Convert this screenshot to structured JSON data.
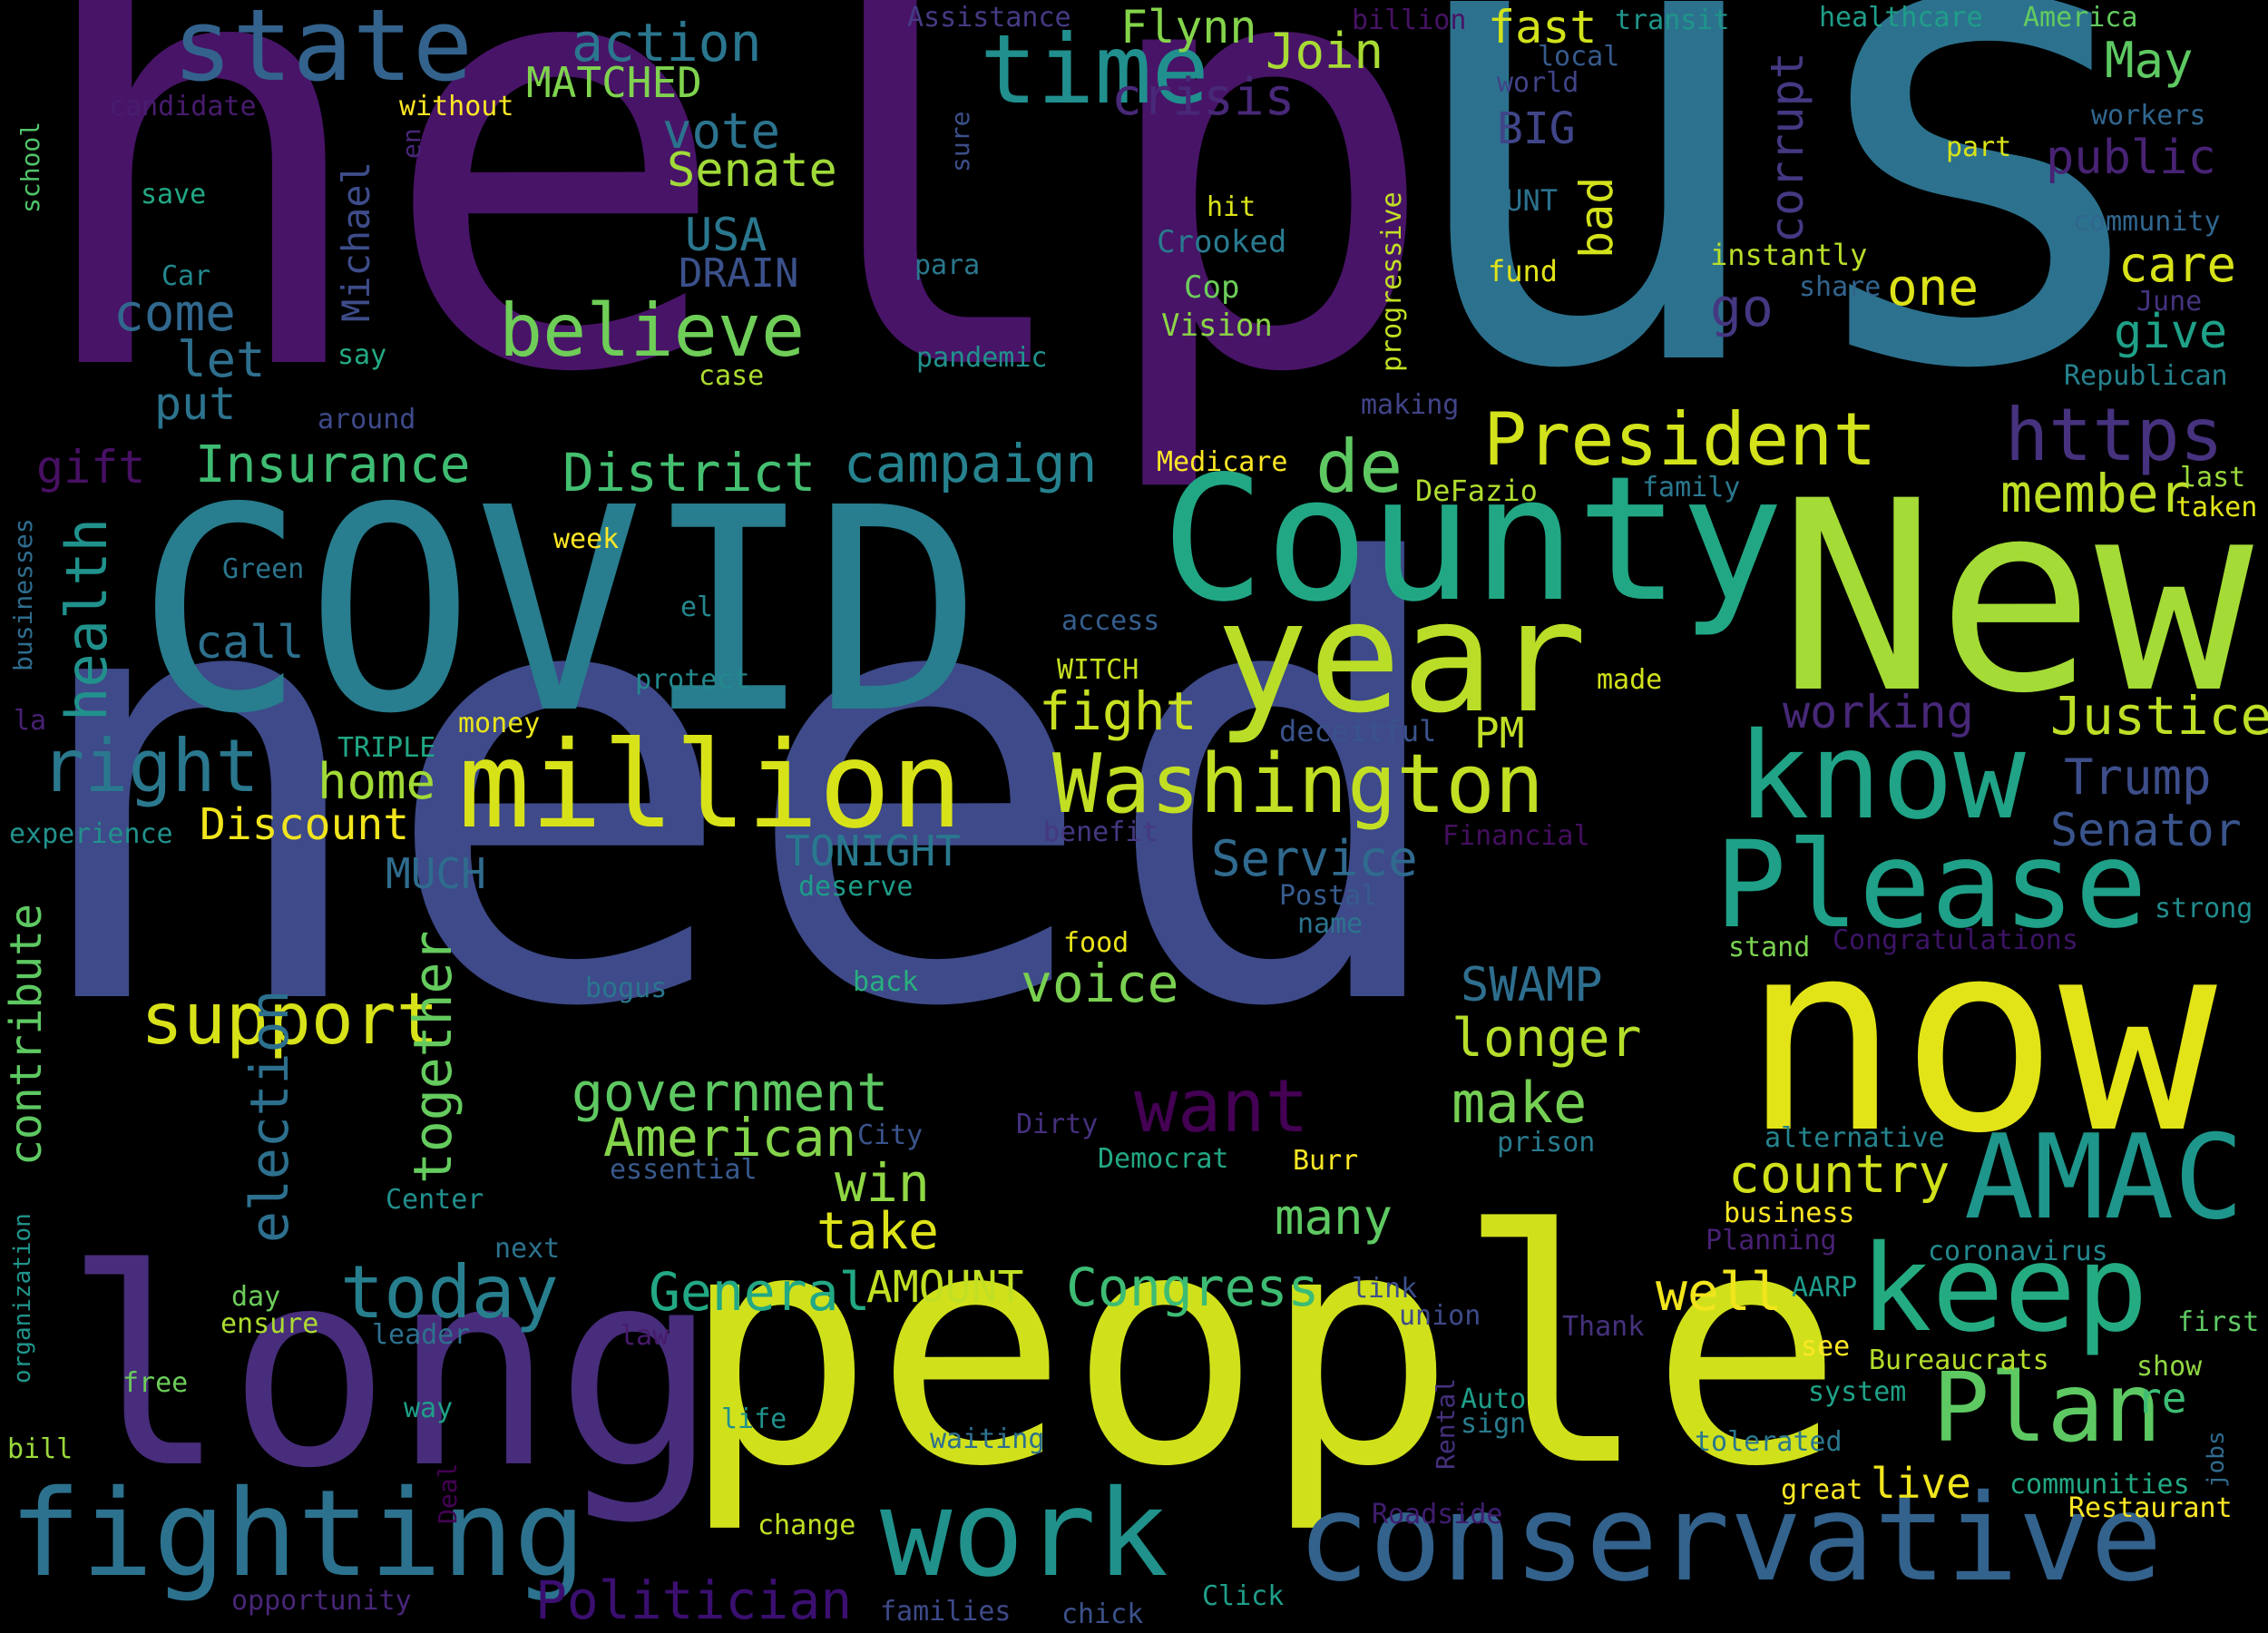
{
  "words": [
    {
      "text": "need",
      "color": "#3e4a89"
    },
    {
      "text": "help",
      "color": "#481467"
    },
    {
      "text": "us",
      "color": "#2c728e"
    },
    {
      "text": "people",
      "color": "#d0e11c"
    },
    {
      "text": "COVID",
      "color": "#287d8e"
    },
    {
      "text": "New",
      "color": "#a5db36"
    },
    {
      "text": "long",
      "color": "#472d7b"
    },
    {
      "text": "now",
      "color": "#e2e418"
    },
    {
      "text": "County",
      "color": "#22a785"
    },
    {
      "text": "conservative",
      "color": "#33628d"
    },
    {
      "text": "year",
      "color": "#bade28"
    },
    {
      "text": "million",
      "color": "#d8e219"
    },
    {
      "text": "know",
      "color": "#20a386"
    },
    {
      "text": "keep",
      "color": "#25ab82"
    },
    {
      "text": "work",
      "color": "#21918c"
    },
    {
      "text": "fighting",
      "color": "#2c728e"
    },
    {
      "text": "Please",
      "color": "#1fa088"
    },
    {
      "text": "AMAC",
      "color": "#1f968b"
    },
    {
      "text": "Plan",
      "color": "#5ec962"
    },
    {
      "text": "Washington",
      "color": "#c2df23"
    },
    {
      "text": "time",
      "color": "#218f8d"
    },
    {
      "text": "state",
      "color": "#33638d"
    },
    {
      "text": "President",
      "color": "#d2e21b"
    },
    {
      "text": "want",
      "color": "#440154"
    },
    {
      "text": "https",
      "color": "#46327e"
    },
    {
      "text": "believe",
      "color": "#6ece58"
    },
    {
      "text": "right",
      "color": "#2a788e"
    },
    {
      "text": "today",
      "color": "#277f8e"
    },
    {
      "text": "support",
      "color": "#d8e219"
    },
    {
      "text": "de",
      "color": "#5ec962"
    },
    {
      "text": "action",
      "color": "#2a768e"
    },
    {
      "text": "Justice",
      "color": "#bddf26"
    },
    {
      "text": "member",
      "color": "#bddf26"
    },
    {
      "text": "government",
      "color": "#5ec962"
    },
    {
      "text": "American",
      "color": "#84d44b"
    },
    {
      "text": "General",
      "color": "#22a884"
    },
    {
      "text": "Congress",
      "color": "#3dbc74"
    },
    {
      "text": "Politician",
      "color": "#3b0f70"
    },
    {
      "text": "country",
      "color": "#d0e11c"
    },
    {
      "text": "fight",
      "color": "#c8e020"
    },
    {
      "text": "campaign",
      "color": "#26828e"
    },
    {
      "text": "District",
      "color": "#44bf70"
    },
    {
      "text": "Insurance",
      "color": "#3fbc73"
    },
    {
      "text": "health",
      "color": "#21918c"
    },
    {
      "text": "election",
      "color": "#2d708e"
    },
    {
      "text": "together",
      "color": "#65cb5e"
    },
    {
      "text": "contribute",
      "color": "#5ec962"
    },
    {
      "text": "voice",
      "color": "#7ad151"
    },
    {
      "text": "make",
      "color": "#75d054"
    },
    {
      "text": "longer",
      "color": "#b5de2b"
    },
    {
      "text": "SWAMP",
      "color": "#2e6e8e"
    },
    {
      "text": "win",
      "color": "#8fd744"
    },
    {
      "text": "take",
      "color": "#dde318"
    },
    {
      "text": "many",
      "color": "#5ec962"
    },
    {
      "text": "well",
      "color": "#f1e51d"
    },
    {
      "text": "AMOUNT",
      "color": "#c2df23"
    },
    {
      "text": "Discount",
      "color": "#f1e51d"
    },
    {
      "text": "home",
      "color": "#a2da37"
    },
    {
      "text": "Service",
      "color": "#306a8e"
    },
    {
      "text": "working",
      "color": "#472878"
    },
    {
      "text": "Trump",
      "color": "#3d4e8a"
    },
    {
      "text": "Senator",
      "color": "#3a548c"
    },
    {
      "text": "care",
      "color": "#d8e219"
    },
    {
      "text": "one",
      "color": "#dde318"
    },
    {
      "text": "give",
      "color": "#1fa188"
    },
    {
      "text": "public",
      "color": "#482374"
    },
    {
      "text": "May",
      "color": "#5ec962"
    },
    {
      "text": "go",
      "color": "#453781"
    },
    {
      "text": "corrupt",
      "color": "#443983"
    },
    {
      "text": "bad",
      "color": "#d2e21b"
    },
    {
      "text": "fast",
      "color": "#d2e21b"
    },
    {
      "text": "Join",
      "color": "#a8db34"
    },
    {
      "text": "Flynn",
      "color": "#84d44b"
    },
    {
      "text": "crisis",
      "color": "#482878"
    },
    {
      "text": "vote",
      "color": "#2c738e"
    },
    {
      "text": "Senate",
      "color": "#a0da39"
    },
    {
      "text": "USA",
      "color": "#2a778e"
    },
    {
      "text": "DRAIN",
      "color": "#3b518b"
    },
    {
      "text": "come",
      "color": "#31688e"
    },
    {
      "text": "let",
      "color": "#2e6f8e"
    },
    {
      "text": "put",
      "color": "#2c738e"
    },
    {
      "text": "gift",
      "color": "#471063"
    },
    {
      "text": "call",
      "color": "#2d708e"
    },
    {
      "text": "Michael",
      "color": "#3e4c8a"
    },
    {
      "text": "MATCHED",
      "color": "#7fd34e"
    },
    {
      "text": "BIG",
      "color": "#404588"
    },
    {
      "text": "PM",
      "color": "#c0df25"
    },
    {
      "text": "TONIGHT",
      "color": "#29798e"
    },
    {
      "text": "MUCH",
      "color": "#2f6c8e"
    },
    {
      "text": "Crooked",
      "color": "#297a8e"
    },
    {
      "text": "Cop",
      "color": "#6ccd5a"
    },
    {
      "text": "Vision",
      "color": "#8bd646"
    },
    {
      "text": "HUNT",
      "color": "#2c718e"
    },
    {
      "text": "fund",
      "color": "#e2e418"
    },
    {
      "text": "instantly",
      "color": "#b8de29"
    },
    {
      "text": "healthcare",
      "color": "#1f9e89"
    },
    {
      "text": "America",
      "color": "#63cb5f"
    },
    {
      "text": "world",
      "color": "#404387"
    },
    {
      "text": "local",
      "color": "#375a8c"
    },
    {
      "text": "transit",
      "color": "#1f958b"
    },
    {
      "text": "billion",
      "color": "#471365"
    },
    {
      "text": "Assistance",
      "color": "#443b84"
    },
    {
      "text": "without",
      "color": "#fde725"
    },
    {
      "text": "candidate",
      "color": "#481c6e"
    },
    {
      "text": "school",
      "color": "#50c46a"
    },
    {
      "text": "save",
      "color": "#22a884"
    },
    {
      "text": "Car",
      "color": "#23898e"
    },
    {
      "text": "say",
      "color": "#23a983"
    },
    {
      "text": "around",
      "color": "#3e4a89"
    },
    {
      "text": "en",
      "color": "#482677"
    },
    {
      "text": "sure",
      "color": "#3c4f8a"
    },
    {
      "text": "para",
      "color": "#2a788e"
    },
    {
      "text": "case",
      "color": "#addc30"
    },
    {
      "text": "pandemic",
      "color": "#21918c"
    },
    {
      "text": "hit",
      "color": "#d8e219"
    },
    {
      "text": "progressive",
      "color": "#c2df23"
    },
    {
      "text": "share",
      "color": "#32648e"
    },
    {
      "text": "June",
      "color": "#46337f"
    },
    {
      "text": "workers",
      "color": "#31678e"
    },
    {
      "text": "part",
      "color": "#d8e219"
    },
    {
      "text": "community",
      "color": "#31668e"
    },
    {
      "text": "Republican",
      "color": "#25838e"
    },
    {
      "text": "making",
      "color": "#414487"
    },
    {
      "text": "Medicare",
      "color": "#fde725"
    },
    {
      "text": "DeFazio",
      "color": "#b0dd2f"
    },
    {
      "text": "family",
      "color": "#2a788e"
    },
    {
      "text": "last",
      "color": "#9bd93c"
    },
    {
      "text": "taken",
      "color": "#e2e418"
    },
    {
      "text": "week",
      "color": "#fde725"
    },
    {
      "text": "Green",
      "color": "#2b758e"
    },
    {
      "text": "el",
      "color": "#24878e"
    },
    {
      "text": "access",
      "color": "#355e8d"
    },
    {
      "text": "protect",
      "color": "#23898e"
    },
    {
      "text": "WITCH",
      "color": "#c8e020"
    },
    {
      "text": "made",
      "color": "#d2e21b"
    },
    {
      "text": "businesses",
      "color": "#2e6d8e"
    },
    {
      "text": "la",
      "color": "#482173"
    },
    {
      "text": "money",
      "color": "#eae51a"
    },
    {
      "text": "TRIPLE",
      "color": "#21a685"
    },
    {
      "text": "deceitful",
      "color": "#3a538b"
    },
    {
      "text": "experience",
      "color": "#21918c"
    },
    {
      "text": "benefit",
      "color": "#453882"
    },
    {
      "text": "Financial",
      "color": "#440f5f"
    },
    {
      "text": "deserve",
      "color": "#1e9c89"
    },
    {
      "text": "Postal",
      "color": "#375b8d"
    },
    {
      "text": "name",
      "color": "#2c738e"
    },
    {
      "text": "strong",
      "color": "#228c8d"
    },
    {
      "text": "stand",
      "color": "#7ad151"
    },
    {
      "text": "Congratulations",
      "color": "#3d1466"
    },
    {
      "text": "food",
      "color": "#eae51a"
    },
    {
      "text": "bogus",
      "color": "#2a768e"
    },
    {
      "text": "back",
      "color": "#29af7f"
    },
    {
      "text": "Dirty",
      "color": "#46307e"
    },
    {
      "text": "City",
      "color": "#3a548c"
    },
    {
      "text": "essential",
      "color": "#38598c"
    },
    {
      "text": "Democrat",
      "color": "#22a884"
    },
    {
      "text": "Burr",
      "color": "#fde725"
    },
    {
      "text": "alternative",
      "color": "#25848e"
    },
    {
      "text": "prison",
      "color": "#297b8e"
    },
    {
      "text": "business",
      "color": "#fde725"
    },
    {
      "text": "Planning",
      "color": "#482173"
    },
    {
      "text": "coronavirus",
      "color": "#23888e"
    },
    {
      "text": "Center",
      "color": "#21908d"
    },
    {
      "text": "organization",
      "color": "#1f958b"
    },
    {
      "text": "next",
      "color": "#2c728e"
    },
    {
      "text": "day",
      "color": "#6ccd5a"
    },
    {
      "text": "ensure",
      "color": "#addc30"
    },
    {
      "text": "leader",
      "color": "#2d718e"
    },
    {
      "text": "law",
      "color": "#481a6c"
    },
    {
      "text": "link",
      "color": "#3c508b"
    },
    {
      "text": "union",
      "color": "#3e4b89"
    },
    {
      "text": "Thank",
      "color": "#46327e"
    },
    {
      "text": "AARP",
      "color": "#1e9b8a"
    },
    {
      "text": "see",
      "color": "#fde725"
    },
    {
      "text": "Bureaucrats",
      "color": "#b5de2b"
    },
    {
      "text": "first",
      "color": "#5ec962"
    },
    {
      "text": "show",
      "color": "#90d743"
    },
    {
      "text": "re",
      "color": "#3dbc74"
    },
    {
      "text": "jobs",
      "color": "#2f6b8e"
    },
    {
      "text": "free",
      "color": "#6ccd5a"
    },
    {
      "text": "way",
      "color": "#1fa088"
    },
    {
      "text": "life",
      "color": "#20928c"
    },
    {
      "text": "waiting",
      "color": "#2e6f8e"
    },
    {
      "text": "Rental",
      "color": "#46307e"
    },
    {
      "text": "Auto",
      "color": "#1f9e89"
    },
    {
      "text": "sign",
      "color": "#287c8e"
    },
    {
      "text": "system",
      "color": "#1fa187"
    },
    {
      "text": "tolerated",
      "color": "#2a778e"
    },
    {
      "text": "great",
      "color": "#fde725"
    },
    {
      "text": "live",
      "color": "#f1e51d"
    },
    {
      "text": "communities",
      "color": "#22a884"
    },
    {
      "text": "Restaurant",
      "color": "#fde725"
    },
    {
      "text": "bill",
      "color": "#9bd93c"
    },
    {
      "text": "Deal",
      "color": "#440154"
    },
    {
      "text": "change",
      "color": "#c2df23"
    },
    {
      "text": "Roadside",
      "color": "#3f1d6e"
    },
    {
      "text": "opportunity",
      "color": "#482677"
    },
    {
      "text": "families",
      "color": "#3e4a89"
    },
    {
      "text": "chick",
      "color": "#3b528b"
    },
    {
      "text": "Click",
      "color": "#1f9e89"
    }
  ]
}
